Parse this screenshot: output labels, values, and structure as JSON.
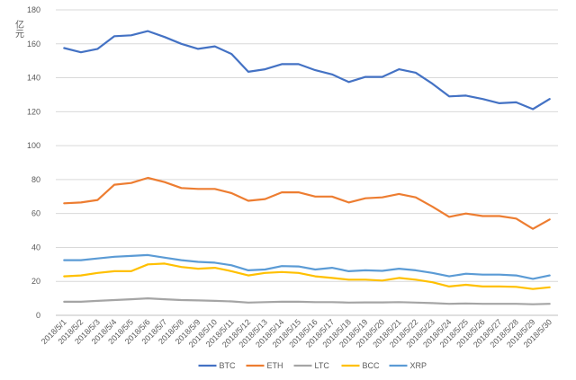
{
  "chart_data": {
    "type": "line",
    "title": "",
    "xlabel": "",
    "ylabel": "亿元",
    "ylim": [
      0,
      180
    ],
    "yticks": [
      0,
      20,
      40,
      60,
      80,
      100,
      120,
      140,
      160,
      180
    ],
    "grid": "horizontal",
    "legend_position": "bottom",
    "categories": [
      "2018/5/1",
      "2018/5/2",
      "2018/5/3",
      "2018/5/4",
      "2018/5/5",
      "2018/5/6",
      "2018/5/7",
      "2018/5/8",
      "2018/5/9",
      "2018/5/10",
      "2018/5/11",
      "2018/5/12",
      "2018/5/13",
      "2018/5/14",
      "2018/5/15",
      "2018/5/16",
      "2018/5/17",
      "2018/5/18",
      "2018/5/19",
      "2018/5/20",
      "2018/5/21",
      "2018/5/22",
      "2018/5/23",
      "2018/5/24",
      "2018/5/25",
      "2018/5/26",
      "2018/5/27",
      "2018/5/28",
      "2018/5/29",
      "2018/5/30"
    ],
    "series": [
      {
        "name": "BTC",
        "color": "#4472C4",
        "values": [
          157.5,
          155,
          157,
          164.5,
          165,
          167.5,
          164,
          160,
          157,
          158.5,
          154,
          143.5,
          145,
          148,
          148,
          144.5,
          142,
          137.5,
          140.5,
          140.5,
          145,
          143,
          136.5,
          129,
          129.5,
          127.5,
          125,
          125.5,
          121.5,
          127.5
        ]
      },
      {
        "name": "ETH",
        "color": "#ED7D31",
        "values": [
          66,
          66.5,
          68,
          77,
          78,
          81,
          78.5,
          75,
          74.5,
          74.5,
          72,
          67.5,
          68.5,
          72.5,
          72.5,
          70,
          70,
          66.5,
          69,
          69.5,
          71.5,
          69.5,
          64,
          58,
          60,
          58.5,
          58.5,
          57,
          51,
          56.5
        ]
      },
      {
        "name": "LTC",
        "color": "#A5A5A5",
        "values": [
          8,
          8,
          8.5,
          9,
          9.5,
          10,
          9.5,
          9,
          8.8,
          8.5,
          8.2,
          7.5,
          7.8,
          8,
          8,
          7.8,
          7.8,
          7.5,
          7.6,
          7.6,
          7.8,
          7.5,
          7.2,
          6.8,
          7,
          6.8,
          6.8,
          6.8,
          6.5,
          6.8
        ]
      },
      {
        "name": "BCC",
        "color": "#FFC000",
        "values": [
          23,
          23.5,
          25,
          26,
          26,
          30,
          30.5,
          28.5,
          27.5,
          28,
          26,
          23.5,
          25,
          25.5,
          25,
          23,
          22,
          21,
          21,
          20.5,
          22,
          21,
          19.5,
          17,
          18,
          17,
          17,
          16.8,
          15.5,
          16.5
        ]
      },
      {
        "name": "XRP",
        "color": "#5B9BD5",
        "values": [
          32.5,
          32.5,
          33.5,
          34.5,
          35,
          35.5,
          34,
          32.5,
          31.5,
          31,
          29.5,
          26.5,
          27,
          29,
          28.8,
          27,
          28,
          26,
          26.5,
          26.2,
          27.5,
          26.5,
          25,
          23,
          24.5,
          24,
          24,
          23.5,
          21.5,
          23.5
        ]
      }
    ]
  }
}
